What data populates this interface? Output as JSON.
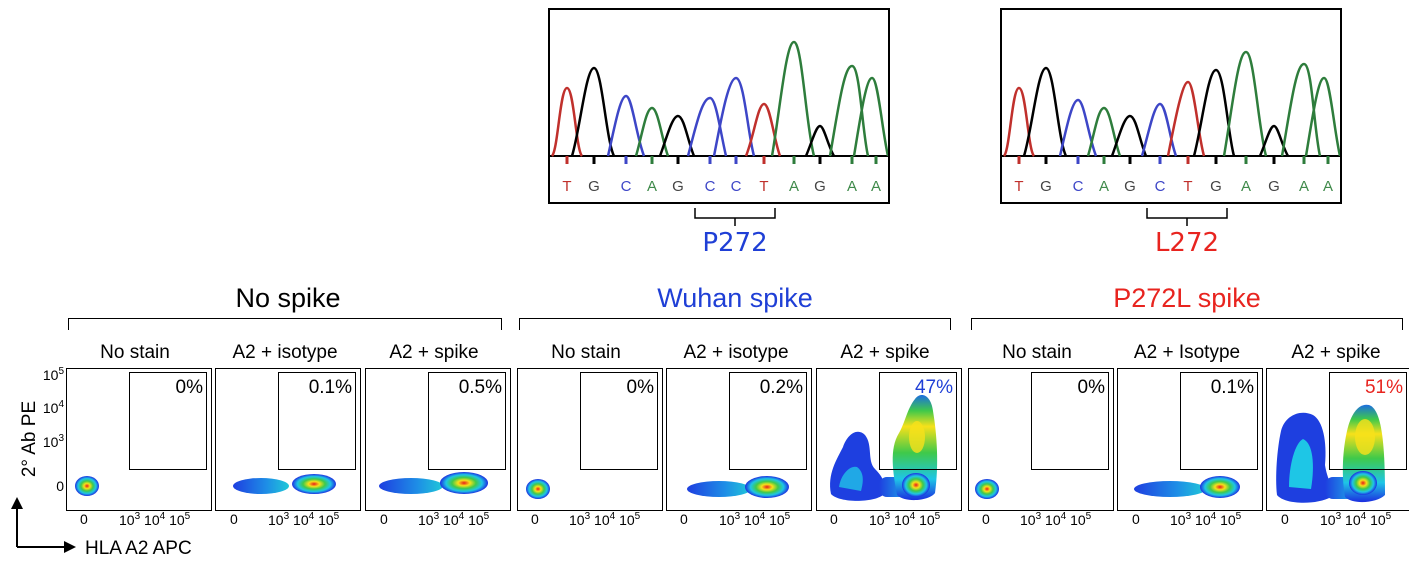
{
  "chromatograms": [
    {
      "variant_label": "P272",
      "variant_color": "#1f3fd6",
      "sequence": [
        "T",
        "G",
        "C",
        "A",
        "G",
        "C",
        "C",
        "T",
        "A",
        "G",
        "A",
        "A"
      ]
    },
    {
      "variant_label": "L272",
      "variant_color": "#e8241f",
      "sequence": [
        "T",
        "G",
        "C",
        "A",
        "G",
        "C",
        "T",
        "G",
        "A",
        "G",
        "A",
        "A"
      ]
    }
  ],
  "base_colors": {
    "T": "#c0302c",
    "G": "#444444",
    "C": "#3d46c7",
    "A": "#3f8a4a"
  },
  "trace_colors": {
    "T": "#c0302c",
    "G": "#000000",
    "C": "#3d46c7",
    "A": "#2e7d3c"
  },
  "groups": [
    {
      "title": "No spike",
      "title_color": "#000000",
      "panels": [
        {
          "title": "No stain",
          "percent": "0%",
          "percent_color": "#000000"
        },
        {
          "title": "A2 + isotype",
          "percent": "0.1%",
          "percent_color": "#000000"
        },
        {
          "title": "A2 + spike",
          "percent": "0.5%",
          "percent_color": "#000000"
        }
      ]
    },
    {
      "title": "Wuhan spike",
      "title_color": "#1f3fd6",
      "panels": [
        {
          "title": "No stain",
          "percent": "0%",
          "percent_color": "#000000"
        },
        {
          "title": "A2 + isotype",
          "percent": "0.2%",
          "percent_color": "#000000"
        },
        {
          "title": "A2 + spike",
          "percent": "47%",
          "percent_color": "#1f3fd6"
        }
      ]
    },
    {
      "title": "P272L spike",
      "title_color": "#e8241f",
      "panels": [
        {
          "title": "No stain",
          "percent": "0%",
          "percent_color": "#000000"
        },
        {
          "title": "A2 + Isotype",
          "percent": "0.1%",
          "percent_color": "#000000"
        },
        {
          "title": "A2 + spike",
          "percent": "51%",
          "percent_color": "#e8241f"
        }
      ]
    }
  ],
  "axes": {
    "y_label": "2° Ab PE",
    "x_label": "HLA A2 APC",
    "tick_zero": "0",
    "tick_base": "10",
    "y_exponents": [
      "5",
      "4",
      "3"
    ],
    "x_exponents": [
      "3",
      "4",
      "5"
    ]
  }
}
